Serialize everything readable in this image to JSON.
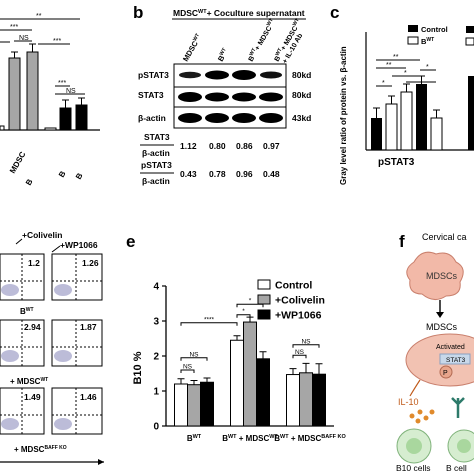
{
  "panel_letters": [
    "b",
    "c",
    "e",
    "f"
  ],
  "panel_b": {
    "title_cell": "MDSC",
    "title_sup": "WT",
    "title_rest": "+ Coculture supernatant",
    "lanes": [
      {
        "main": "MDSC",
        "sup": "WT"
      },
      {
        "main": "B",
        "sup": "WT"
      },
      {
        "main": "B",
        "sup": "WT",
        "rest": "+ MDSC",
        "sup2": "WT"
      },
      {
        "main": "B",
        "sup": "WT",
        "rest": "+ MDSC",
        "sup2": "WT",
        "line2": "+ IL-10 Ab"
      }
    ],
    "blots": [
      {
        "label": "pSTAT3",
        "size": "80kd"
      },
      {
        "label": "STAT3",
        "size": "80kd"
      },
      {
        "label": "β-actin",
        "size": "43kd"
      }
    ],
    "ratios": [
      {
        "num": "STAT3",
        "den": "β-actin",
        "values": [
          "1.12",
          "0.80",
          "0.86",
          "0.97"
        ]
      },
      {
        "num": "pSTAT3",
        "den": "β-actin",
        "values": [
          "0.43",
          "0.78",
          "0.96",
          "0.48"
        ]
      }
    ]
  },
  "panel_a_left": {
    "sig_labels": [
      "**",
      "***",
      "NS",
      "***",
      "***",
      "NS"
    ],
    "x_labels": [
      "MDSC",
      "B",
      "B",
      "B"
    ]
  },
  "panel_c": {
    "ylabel": "Gray level ratio of protein vs. β-actin",
    "xlabel": "pSTAT3",
    "legend": [
      {
        "label": "Control"
      },
      {
        "label": "B",
        "sup": "WT"
      }
    ],
    "sig_labels": [
      "**",
      "**",
      "*",
      "*",
      "*"
    ]
  },
  "panel_d": {
    "column_labels": [
      "+Colivelin",
      "+WP1066"
    ],
    "values": [
      "1.2",
      "1.26",
      "2.94",
      "1.87",
      "1.49",
      "1.46"
    ],
    "row_labels": [
      {
        "main": "B",
        "sup": "WT"
      },
      {
        "main": "+ MDSC",
        "sup": "WT"
      },
      {
        "main": "+ MDSC",
        "sup": "BAFF KO"
      }
    ]
  },
  "panel_f": {
    "labels": [
      "Cervical ca",
      "MDSCs",
      "MDSCs",
      "Activated",
      "STAT3",
      "P",
      "IL-10",
      "B10 cells",
      "B cell"
    ]
  },
  "colors": {
    "control": "#ffffff",
    "colivelin": "#a6a6a6",
    "wp1066": "#000000",
    "cell_pink": "#f2b9a8"
  },
  "chart_data": [
    {
      "type": "bar",
      "panel": "e",
      "categories": [
        "B^WT",
        "B^WT + MDSC^WT",
        "B^WT + MDSC^BAFF KO"
      ],
      "series": [
        {
          "name": "Control",
          "values": [
            1.2,
            2.45,
            1.47
          ],
          "errors": [
            0.15,
            0.13,
            0.17
          ]
        },
        {
          "name": "+Colivelin",
          "values": [
            1.18,
            2.97,
            1.52
          ],
          "errors": [
            0.12,
            0.14,
            0.27
          ]
        },
        {
          "name": "+WP1066",
          "values": [
            1.25,
            1.92,
            1.48
          ],
          "errors": [
            0.12,
            0.2,
            0.3
          ]
        }
      ],
      "ylabel": "B10 %",
      "ylim": [
        0,
        4
      ],
      "yticks": [
        "0",
        "1",
        "2",
        "3",
        "4"
      ],
      "legend": "top-right",
      "significance": [
        "****",
        "*",
        "*",
        "NS",
        "NS",
        "NS",
        "NS"
      ]
    }
  ]
}
